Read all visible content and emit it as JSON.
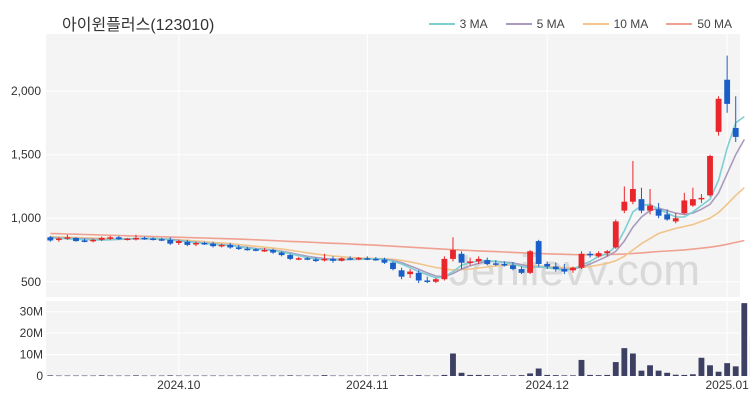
{
  "title": "아이윈플러스(123010)",
  "watermark": "Jeniievv.com",
  "colors": {
    "up": "#e8262b",
    "down": "#1a5fc8",
    "ma3": "#7ecfd4",
    "ma5": "#a99bbf",
    "ma10": "#f0c48a",
    "ma50": "#f0a090",
    "volume": "#3d3f63",
    "panel_bg": "#f4f4f4"
  },
  "legend": [
    {
      "label": "3 MA",
      "color": "#7ecfd4"
    },
    {
      "label": "5 MA",
      "color": "#a99bbf"
    },
    {
      "label": "10 MA",
      "color": "#f0c48a"
    },
    {
      "label": "50 MA",
      "color": "#f0a090"
    }
  ],
  "chart_data": {
    "type": "candlestick",
    "price_axis": {
      "ticks": [
        500,
        1000,
        1500,
        2000
      ],
      "tick_labels": [
        "500",
        "1,000",
        "1,500",
        "2,000"
      ],
      "ylim": [
        380,
        2450
      ]
    },
    "volume_axis": {
      "ticks": [
        0,
        10,
        20,
        30
      ],
      "tick_labels": [
        "0",
        "10M",
        "20M",
        "30M"
      ],
      "ylim": [
        0,
        35
      ],
      "unit": "M"
    },
    "x_tick_labels": [
      {
        "index": 15,
        "label": "2024.10"
      },
      {
        "index": 37,
        "label": "2024.11"
      },
      {
        "index": 58,
        "label": "2024.12"
      },
      {
        "index": 79,
        "label": "2025.01"
      }
    ],
    "candles": [
      {
        "o": 850,
        "h": 860,
        "l": 815,
        "c": 825
      },
      {
        "o": 830,
        "h": 850,
        "l": 815,
        "c": 840
      },
      {
        "o": 845,
        "h": 870,
        "l": 830,
        "c": 850
      },
      {
        "o": 845,
        "h": 850,
        "l": 815,
        "c": 820
      },
      {
        "o": 825,
        "h": 840,
        "l": 810,
        "c": 815
      },
      {
        "o": 820,
        "h": 840,
        "l": 810,
        "c": 830
      },
      {
        "o": 830,
        "h": 855,
        "l": 820,
        "c": 845
      },
      {
        "o": 845,
        "h": 860,
        "l": 830,
        "c": 850
      },
      {
        "o": 850,
        "h": 860,
        "l": 830,
        "c": 835
      },
      {
        "o": 835,
        "h": 845,
        "l": 825,
        "c": 840
      },
      {
        "o": 840,
        "h": 870,
        "l": 825,
        "c": 845
      },
      {
        "o": 845,
        "h": 855,
        "l": 830,
        "c": 835
      },
      {
        "o": 840,
        "h": 850,
        "l": 825,
        "c": 830
      },
      {
        "o": 835,
        "h": 845,
        "l": 820,
        "c": 825
      },
      {
        "o": 830,
        "h": 850,
        "l": 790,
        "c": 800
      },
      {
        "o": 805,
        "h": 830,
        "l": 790,
        "c": 820
      },
      {
        "o": 815,
        "h": 830,
        "l": 780,
        "c": 790
      },
      {
        "o": 795,
        "h": 815,
        "l": 780,
        "c": 805
      },
      {
        "o": 805,
        "h": 815,
        "l": 790,
        "c": 800
      },
      {
        "o": 800,
        "h": 815,
        "l": 770,
        "c": 780
      },
      {
        "o": 785,
        "h": 800,
        "l": 770,
        "c": 790
      },
      {
        "o": 790,
        "h": 805,
        "l": 760,
        "c": 770
      },
      {
        "o": 770,
        "h": 790,
        "l": 750,
        "c": 760
      },
      {
        "o": 760,
        "h": 775,
        "l": 745,
        "c": 750
      },
      {
        "o": 755,
        "h": 765,
        "l": 740,
        "c": 745
      },
      {
        "o": 745,
        "h": 765,
        "l": 735,
        "c": 750
      },
      {
        "o": 750,
        "h": 760,
        "l": 720,
        "c": 730
      },
      {
        "o": 730,
        "h": 740,
        "l": 700,
        "c": 710
      },
      {
        "o": 710,
        "h": 720,
        "l": 670,
        "c": 680
      },
      {
        "o": 680,
        "h": 695,
        "l": 670,
        "c": 685
      },
      {
        "o": 685,
        "h": 695,
        "l": 670,
        "c": 675
      },
      {
        "o": 675,
        "h": 690,
        "l": 655,
        "c": 670
      },
      {
        "o": 670,
        "h": 720,
        "l": 660,
        "c": 680
      },
      {
        "o": 680,
        "h": 700,
        "l": 650,
        "c": 665
      },
      {
        "o": 665,
        "h": 690,
        "l": 660,
        "c": 685
      },
      {
        "o": 685,
        "h": 700,
        "l": 670,
        "c": 680
      },
      {
        "o": 680,
        "h": 695,
        "l": 670,
        "c": 688
      },
      {
        "o": 685,
        "h": 700,
        "l": 670,
        "c": 678
      },
      {
        "o": 680,
        "h": 695,
        "l": 665,
        "c": 672
      },
      {
        "o": 675,
        "h": 690,
        "l": 640,
        "c": 650
      },
      {
        "o": 650,
        "h": 660,
        "l": 590,
        "c": 600
      },
      {
        "o": 590,
        "h": 610,
        "l": 520,
        "c": 540
      },
      {
        "o": 560,
        "h": 600,
        "l": 530,
        "c": 580
      },
      {
        "o": 570,
        "h": 590,
        "l": 490,
        "c": 510
      },
      {
        "o": 510,
        "h": 540,
        "l": 490,
        "c": 500
      },
      {
        "o": 500,
        "h": 530,
        "l": 490,
        "c": 520
      },
      {
        "o": 520,
        "h": 700,
        "l": 510,
        "c": 680
      },
      {
        "o": 680,
        "h": 850,
        "l": 660,
        "c": 750
      },
      {
        "o": 720,
        "h": 740,
        "l": 600,
        "c": 650
      },
      {
        "o": 650,
        "h": 690,
        "l": 630,
        "c": 660
      },
      {
        "o": 660,
        "h": 700,
        "l": 640,
        "c": 680
      },
      {
        "o": 670,
        "h": 690,
        "l": 630,
        "c": 640
      },
      {
        "o": 645,
        "h": 670,
        "l": 625,
        "c": 635
      },
      {
        "o": 640,
        "h": 660,
        "l": 620,
        "c": 630
      },
      {
        "o": 630,
        "h": 655,
        "l": 590,
        "c": 600
      },
      {
        "o": 600,
        "h": 620,
        "l": 560,
        "c": 570
      },
      {
        "o": 570,
        "h": 750,
        "l": 560,
        "c": 740
      },
      {
        "o": 820,
        "h": 830,
        "l": 620,
        "c": 640
      },
      {
        "o": 640,
        "h": 660,
        "l": 600,
        "c": 620
      },
      {
        "o": 620,
        "h": 650,
        "l": 580,
        "c": 600
      },
      {
        "o": 600,
        "h": 640,
        "l": 560,
        "c": 580
      },
      {
        "o": 590,
        "h": 620,
        "l": 570,
        "c": 610
      },
      {
        "o": 610,
        "h": 740,
        "l": 600,
        "c": 720
      },
      {
        "o": 720,
        "h": 740,
        "l": 690,
        "c": 710
      },
      {
        "o": 700,
        "h": 740,
        "l": 690,
        "c": 725
      },
      {
        "o": 725,
        "h": 750,
        "l": 700,
        "c": 740
      },
      {
        "o": 770,
        "h": 990,
        "l": 760,
        "c": 975
      },
      {
        "o": 1060,
        "h": 1250,
        "l": 1040,
        "c": 1130
      },
      {
        "o": 1130,
        "h": 1450,
        "l": 1110,
        "c": 1230
      },
      {
        "o": 1150,
        "h": 1240,
        "l": 1040,
        "c": 1060
      },
      {
        "o": 1060,
        "h": 1230,
        "l": 1030,
        "c": 1100
      },
      {
        "o": 1070,
        "h": 1120,
        "l": 1000,
        "c": 1020
      },
      {
        "o": 1030,
        "h": 1070,
        "l": 980,
        "c": 990
      },
      {
        "o": 975,
        "h": 1040,
        "l": 960,
        "c": 1000
      },
      {
        "o": 1040,
        "h": 1200,
        "l": 1030,
        "c": 1140
      },
      {
        "o": 1100,
        "h": 1240,
        "l": 1090,
        "c": 1150
      },
      {
        "o": 1150,
        "h": 1190,
        "l": 1120,
        "c": 1160
      },
      {
        "o": 1180,
        "h": 1500,
        "l": 1170,
        "c": 1490
      },
      {
        "o": 1680,
        "h": 1960,
        "l": 1650,
        "c": 1940
      },
      {
        "o": 2090,
        "h": 2280,
        "l": 1830,
        "c": 1900
      },
      {
        "o": 1710,
        "h": 1960,
        "l": 1600,
        "c": 1640
      }
    ],
    "ma3": [
      845,
      842,
      838,
      835,
      832,
      830,
      828,
      830,
      835,
      838,
      840,
      842,
      840,
      838,
      830,
      820,
      815,
      808,
      802,
      795,
      790,
      785,
      775,
      765,
      758,
      752,
      745,
      735,
      720,
      705,
      690,
      680,
      675,
      672,
      672,
      675,
      678,
      680,
      680,
      675,
      660,
      640,
      610,
      580,
      555,
      530,
      540,
      580,
      630,
      650,
      665,
      668,
      660,
      650,
      640,
      620,
      610,
      620,
      610,
      600,
      590,
      600,
      630,
      660,
      700,
      720,
      780,
      900,
      1050,
      1100,
      1110,
      1070,
      1040,
      1010,
      1010,
      1050,
      1100,
      1150,
      1300,
      1550,
      1750,
      1800
    ],
    "ma5": [
      848,
      845,
      842,
      840,
      838,
      835,
      833,
      832,
      834,
      836,
      838,
      840,
      840,
      838,
      834,
      826,
      818,
      811,
      805,
      798,
      792,
      787,
      778,
      770,
      762,
      756,
      749,
      740,
      728,
      714,
      700,
      690,
      682,
      678,
      675,
      675,
      677,
      679,
      680,
      678,
      668,
      650,
      625,
      598,
      570,
      545,
      540,
      565,
      600,
      625,
      645,
      660,
      660,
      655,
      648,
      635,
      620,
      615,
      612,
      605,
      598,
      600,
      615,
      640,
      670,
      700,
      740,
      820,
      930,
      1010,
      1060,
      1080,
      1060,
      1040,
      1030,
      1040,
      1070,
      1110,
      1200,
      1350,
      1500,
      1620
    ],
    "ma10": [
      855,
      852,
      850,
      848,
      846,
      844,
      842,
      840,
      839,
      838,
      838,
      838,
      837,
      836,
      834,
      830,
      826,
      821,
      816,
      810,
      805,
      800,
      793,
      786,
      779,
      772,
      765,
      757,
      748,
      738,
      728,
      718,
      710,
      703,
      697,
      692,
      688,
      685,
      683,
      681,
      677,
      668,
      656,
      642,
      627,
      612,
      600,
      593,
      595,
      600,
      608,
      616,
      624,
      630,
      633,
      632,
      628,
      624,
      620,
      616,
      612,
      610,
      612,
      620,
      632,
      645,
      665,
      700,
      750,
      800,
      840,
      880,
      900,
      920,
      935,
      950,
      975,
      1000,
      1045,
      1110,
      1180,
      1240
    ],
    "ma50": [
      880,
      878,
      876,
      874,
      872,
      870,
      868,
      866,
      864,
      862,
      860,
      858,
      856,
      854,
      852,
      850,
      848,
      846,
      844,
      842,
      840,
      838,
      836,
      833,
      830,
      827,
      824,
      821,
      818,
      815,
      812,
      809,
      806,
      803,
      800,
      797,
      794,
      791,
      788,
      784,
      780,
      776,
      772,
      768,
      764,
      760,
      756,
      752,
      749,
      746,
      743,
      740,
      737,
      734,
      731,
      728,
      725,
      722,
      720,
      718,
      716,
      714,
      713,
      713,
      713,
      714,
      716,
      718,
      722,
      727,
      733,
      738,
      742,
      746,
      751,
      757,
      764,
      772,
      782,
      795,
      810,
      825
    ],
    "volume_m": [
      0.3,
      0.2,
      0.2,
      0.2,
      0.2,
      0.2,
      0.3,
      0.2,
      0.2,
      0.2,
      0.3,
      0.2,
      0.2,
      0.2,
      0.3,
      0.2,
      0.2,
      0.2,
      0.2,
      0.2,
      0.2,
      0.2,
      0.2,
      0.2,
      0.2,
      0.2,
      0.2,
      0.2,
      0.3,
      0.2,
      0.2,
      0.2,
      0.4,
      0.2,
      0.2,
      0.2,
      0.2,
      0.2,
      0.2,
      0.2,
      0.3,
      0.4,
      0.3,
      0.4,
      0.2,
      0.2,
      0.5,
      10.5,
      1.5,
      0.5,
      0.5,
      0.4,
      0.3,
      0.3,
      0.3,
      0.4,
      1.2,
      3.5,
      0.5,
      0.4,
      0.3,
      0.3,
      7.5,
      0.5,
      0.4,
      0.5,
      6.5,
      13.0,
      10.5,
      2.5,
      5.0,
      2.5,
      1.5,
      0.6,
      0.5,
      0.8,
      8.5,
      5.0,
      2.0,
      6.0,
      4.5,
      34.0,
      18.0
    ]
  }
}
